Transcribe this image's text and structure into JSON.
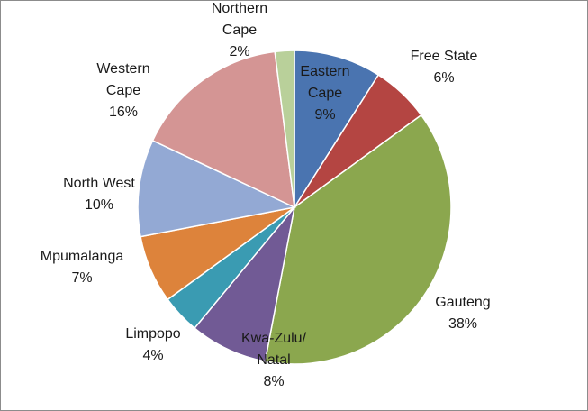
{
  "chart_data": {
    "type": "pie",
    "title": "",
    "legend": "none",
    "slices": [
      {
        "label": "Eastern Cape",
        "label_lines": [
          "Eastern",
          "Cape"
        ],
        "percent_label": "9%",
        "value": 9,
        "color": "#4a74b0"
      },
      {
        "label": "Free State",
        "label_lines": [
          "Free State"
        ],
        "percent_label": "6%",
        "value": 6,
        "color": "#b44542"
      },
      {
        "label": "Gauteng",
        "label_lines": [
          "Gauteng"
        ],
        "percent_label": "38%",
        "value": 38,
        "color": "#8ba74e"
      },
      {
        "label": "Kwa-Zulu/ Natal",
        "label_lines": [
          "Kwa-Zulu/",
          "Natal"
        ],
        "percent_label": "8%",
        "value": 8,
        "color": "#715a95"
      },
      {
        "label": "Limpopo",
        "label_lines": [
          "Limpopo"
        ],
        "percent_label": "4%",
        "value": 4,
        "color": "#3a9bb2"
      },
      {
        "label": "Mpumalanga",
        "label_lines": [
          "Mpumalanga"
        ],
        "percent_label": "7%",
        "value": 7,
        "color": "#dd833b"
      },
      {
        "label": "North West",
        "label_lines": [
          "North West"
        ],
        "percent_label": "10%",
        "value": 10,
        "color": "#93a9d4"
      },
      {
        "label": "Western Cape",
        "label_lines": [
          "Western",
          "Cape"
        ],
        "percent_label": "16%",
        "value": 16,
        "color": "#d49594"
      },
      {
        "label": "Northern Cape",
        "label_lines": [
          "Northern",
          "Cape"
        ],
        "percent_label": "2%",
        "value": 2,
        "color": "#b9d09a"
      }
    ]
  }
}
